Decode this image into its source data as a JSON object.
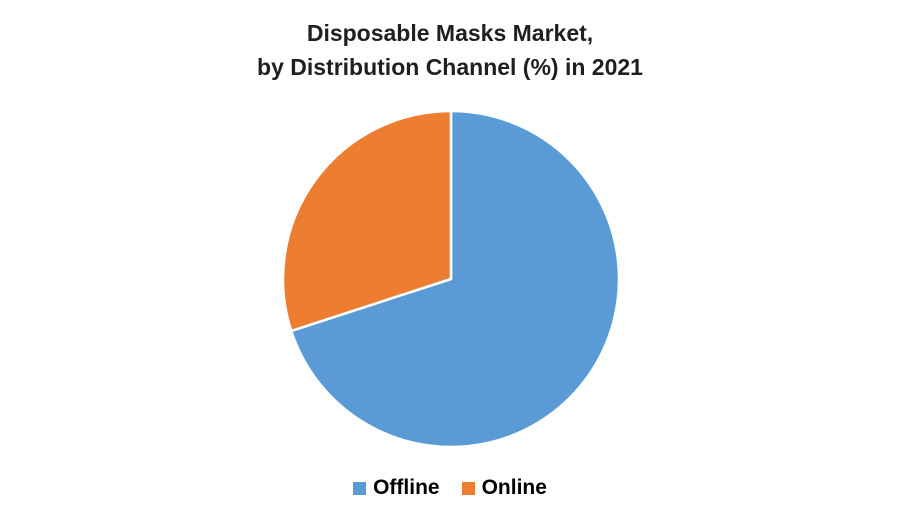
{
  "title": {
    "line1": "Disposable Masks Market,",
    "line2": "by Distribution Channel (%) in 2021"
  },
  "chart_data": {
    "type": "pie",
    "title": "Disposable Masks Market, by Distribution Channel (%) in 2021",
    "categories": [
      "Offline",
      "Online"
    ],
    "values": [
      70,
      30
    ],
    "unit": "%",
    "colors": [
      "#5B9BD5",
      "#ED7D31"
    ],
    "start_angle_deg": 0,
    "direction": "clockwise",
    "slice_border_color": "#ffffff",
    "legend_position": "bottom",
    "data_labels": "none",
    "background": "#ffffff"
  }
}
